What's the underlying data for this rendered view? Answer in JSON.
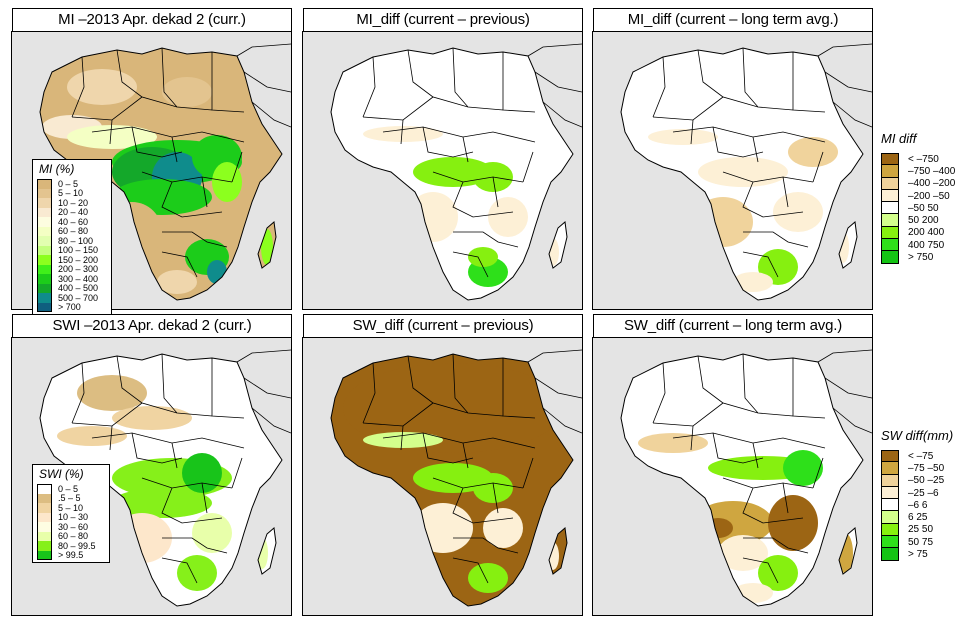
{
  "figure": {
    "panels": [
      {
        "id": "mi-current",
        "title": "MI –2013 Apr. dekad 2 (curr.)",
        "scheme": "mi",
        "pattern": "mi_curr"
      },
      {
        "id": "mi-diff-previous",
        "title": "MI_diff (current – previous)",
        "scheme": "diff",
        "pattern": "mi_prev"
      },
      {
        "id": "mi-diff-longterm",
        "title": "MI_diff (current – long term avg.)",
        "scheme": "diff",
        "pattern": "mi_lt"
      },
      {
        "id": "swi-current",
        "title": "SWI –2013 Apr. dekad 2 (curr.)",
        "scheme": "swi",
        "pattern": "swi_curr"
      },
      {
        "id": "sw-diff-previous",
        "title": "SW_diff (current – previous)",
        "scheme": "diff",
        "pattern": "sw_prev"
      },
      {
        "id": "sw-diff-longterm",
        "title": "SW_diff (current – long term avg.)",
        "scheme": "diff",
        "pattern": "sw_lt"
      }
    ],
    "legends": {
      "mi": {
        "title": "MI (%)",
        "items": [
          {
            "label": "0 – 5",
            "color": "#d9b67a"
          },
          {
            "label": "5 – 10",
            "color": "#e3c48f"
          },
          {
            "label": "10 – 20",
            "color": "#efd6ac"
          },
          {
            "label": "20 – 40",
            "color": "#f9ead2"
          },
          {
            "label": "40 – 60",
            "color": "#fdfde0"
          },
          {
            "label": "60 – 80",
            "color": "#f4ffc4"
          },
          {
            "label": "80 – 100",
            "color": "#e2ffb0"
          },
          {
            "label": "100 – 150",
            "color": "#c4ff80"
          },
          {
            "label": "150 – 200",
            "color": "#8cff1e"
          },
          {
            "label": "200 – 300",
            "color": "#3fef1a"
          },
          {
            "label": "300 – 400",
            "color": "#1ccc1a"
          },
          {
            "label": "400 – 500",
            "color": "#14a82a"
          },
          {
            "label": "500 – 700",
            "color": "#0f8c8c"
          },
          {
            "label": "> 700",
            "color": "#0f5f7f"
          }
        ]
      },
      "swi": {
        "title": "SWI (%)",
        "items": [
          {
            "label": "0 – 5",
            "color": "#ffffff"
          },
          {
            "label": ".5 – 5",
            "color": "#dcbd82"
          },
          {
            "label": "5 – 10",
            "color": "#f0d4a2"
          },
          {
            "label": "10 – 30",
            "color": "#fde7cb"
          },
          {
            "label": "30 – 60",
            "color": "#fefde2"
          },
          {
            "label": "60 – 80",
            "color": "#e8ffaa"
          },
          {
            "label": "80 – 99.5",
            "color": "#86f01a"
          },
          {
            "label": "> 99.5",
            "color": "#18c41a"
          }
        ]
      },
      "mi_diff": {
        "title": "MI diff",
        "items": [
          {
            "label": "< –750",
            "color": "#9c6514"
          },
          {
            "label": "–750 –400",
            "color": "#cfa640"
          },
          {
            "label": "–400 –200",
            "color": "#f0d39c"
          },
          {
            "label": "–200 –50",
            "color": "#fdf0d6"
          },
          {
            "label": "–50  50",
            "color": "#ffffff"
          },
          {
            "label": "50  200",
            "color": "#d4ff8c"
          },
          {
            "label": "200  400",
            "color": "#86f010"
          },
          {
            "label": "400  750",
            "color": "#2ee01a"
          },
          {
            "label": "> 750",
            "color": "#14c414"
          }
        ]
      },
      "sw_diff": {
        "title": "SW diff(mm)",
        "items": [
          {
            "label": "< –75",
            "color": "#9c6514"
          },
          {
            "label": "–75 –50",
            "color": "#cfa640"
          },
          {
            "label": "–50 –25",
            "color": "#f0d39c"
          },
          {
            "label": "–25 –6",
            "color": "#fdf0d6"
          },
          {
            "label": "–6  6",
            "color": "#ffffff"
          },
          {
            "label": "6  25",
            "color": "#d4ff8c"
          },
          {
            "label": "25  50",
            "color": "#86f010"
          },
          {
            "label": "50  75",
            "color": "#2ee01a"
          },
          {
            "label": "> 75",
            "color": "#14c414"
          }
        ]
      }
    },
    "colors": {
      "sea": "#e4e4e4",
      "border": "#000000",
      "nodata": "#e0e0e0"
    }
  }
}
